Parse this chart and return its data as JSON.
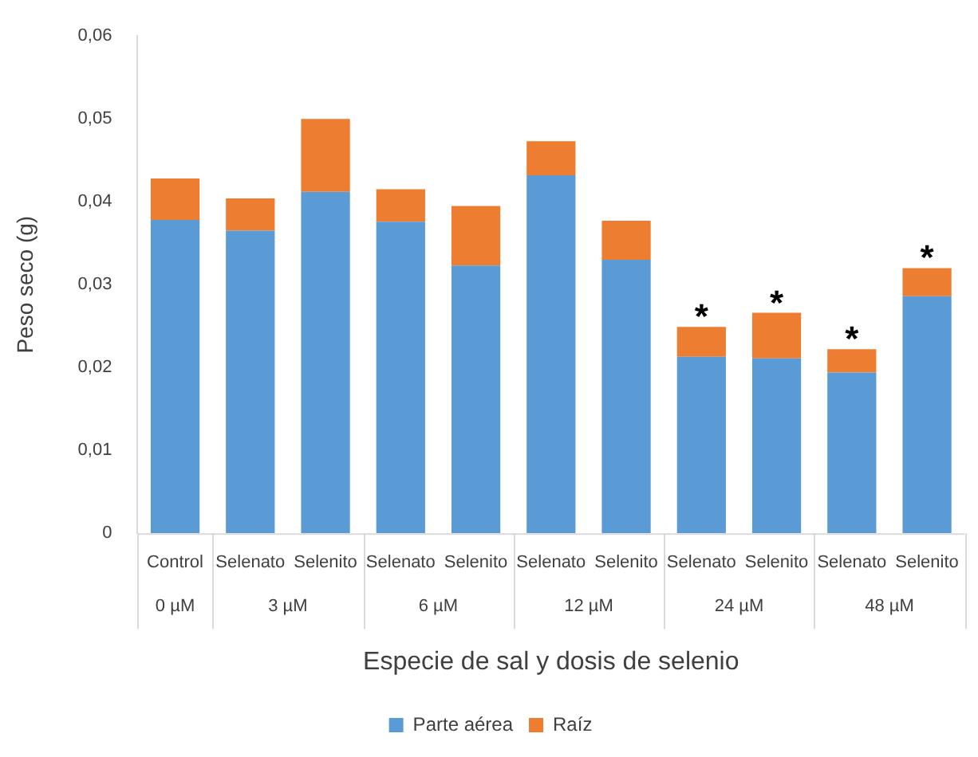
{
  "chart_data": {
    "type": "bar",
    "stacked": true,
    "xlabel": "Especie de sal y dosis de selenio",
    "ylabel": "Peso seco (g)",
    "categories": [
      "Control",
      "Selenato",
      "Selenito",
      "Selenato",
      "Selenito",
      "Selenato",
      "Selenito",
      "Selenato",
      "Selenito",
      "Selenato",
      "Selenito"
    ],
    "series": [
      {
        "name": "Parte aérea",
        "color": "#5b9bd5",
        "values": [
          0.0378,
          0.0365,
          0.0412,
          0.0376,
          0.0323,
          0.0432,
          0.033,
          0.0213,
          0.0211,
          0.0194,
          0.0286
        ]
      },
      {
        "name": "Raíz",
        "color": "#ed7d31",
        "values": [
          0.005,
          0.0039,
          0.0088,
          0.0039,
          0.0072,
          0.0041,
          0.0047,
          0.0036,
          0.0055,
          0.0028,
          0.0034
        ],
        "value_labels": [
          null,
          null,
          null,
          null,
          null,
          null,
          null,
          "*",
          "*",
          "*",
          "*"
        ]
      }
    ],
    "ylim": [
      0,
      0.06
    ],
    "yticks": [
      0,
      {
        "value": 0.01,
        "label": "0,01"
      },
      {
        "value": 0.02,
        "label": "0,02"
      },
      {
        "value": 0.03,
        "label": "0,03"
      },
      {
        "value": 0.04,
        "label": "0,04"
      },
      {
        "value": 0.05,
        "label": "0,05"
      },
      {
        "value": 0.06,
        "label": "0,06"
      }
    ],
    "grid": false,
    "legend": "bottom",
    "annotations": [
      "0 µM",
      "3 µM",
      "6 µM",
      "12 µM",
      "24 µM",
      "48 µM"
    ]
  }
}
